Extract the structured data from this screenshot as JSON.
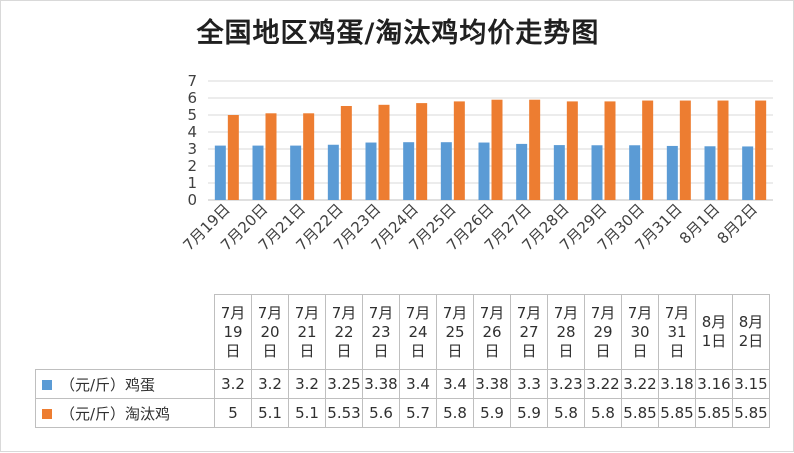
{
  "chart_data": {
    "type": "bar",
    "title": "全国地区鸡蛋/淘汰鸡均价走势图",
    "categories": [
      "7月19日",
      "7月20日",
      "7月21日",
      "7月22日",
      "7月23日",
      "7月24日",
      "7月25日",
      "7月26日",
      "7月27日",
      "7月28日",
      "7月29日",
      "7月30日",
      "7月31日",
      "8月1日",
      "8月2日"
    ],
    "series": [
      {
        "name": "（元/斤）鸡蛋",
        "color": "#5b9bd5",
        "values": [
          "3.2",
          "3.2",
          "3.2",
          "3.25",
          "3.38",
          "3.4",
          "3.4",
          "3.38",
          "3.3",
          "3.23",
          "3.22",
          "3.22",
          "3.18",
          "3.16",
          "3.15"
        ]
      },
      {
        "name": "（元/斤）淘汰鸡",
        "color": "#ed7d31",
        "values": [
          "5",
          "5.1",
          "5.1",
          "5.53",
          "5.6",
          "5.7",
          "5.8",
          "5.9",
          "5.9",
          "5.8",
          "5.8",
          "5.85",
          "5.85",
          "5.85",
          "5.85"
        ]
      }
    ],
    "ylim": [
      0,
      7
    ],
    "yticks": [
      "0",
      "1",
      "2",
      "3",
      "4",
      "5",
      "6",
      "7"
    ],
    "grid": true,
    "legend": "data-table"
  }
}
